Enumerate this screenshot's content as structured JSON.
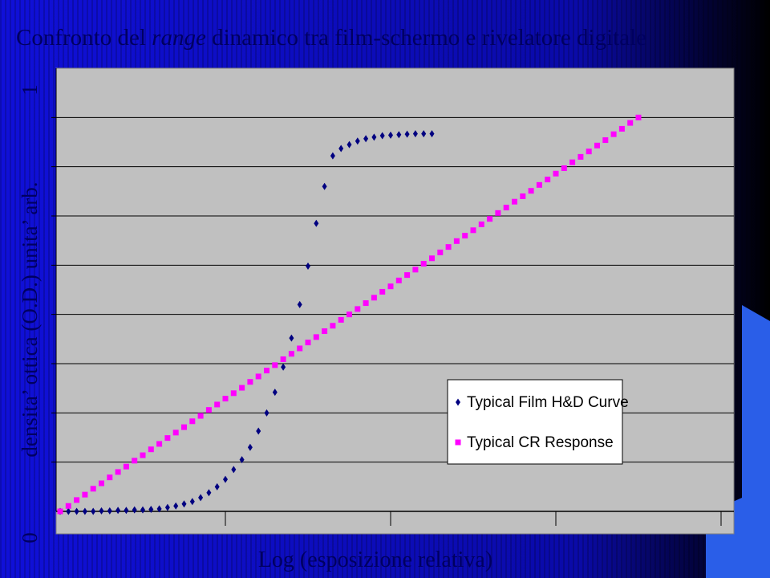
{
  "chart_data": {
    "type": "scatter",
    "title": {
      "before": "Confronto del ",
      "italic": "range",
      "after": " dinamico tra film-schermo e rivelatore digitale"
    },
    "y_label": "densita’ ottica (O.D.) unita’ arb.",
    "y_label_min": "0",
    "y_label_max": "1",
    "x_label": "Log (esposizione relativa)",
    "xlim": [
      0,
      4.1
    ],
    "xticks": [
      1,
      2,
      3,
      4
    ],
    "ylim": [
      0,
      9
    ],
    "yticks": [
      1,
      2,
      3,
      4,
      5,
      6,
      7,
      8
    ],
    "grid": true,
    "legend": "lower right",
    "series": [
      {
        "name": "Typical Film H&D Curve",
        "color": "#000080",
        "marker": "diamond",
        "x": [
          0,
          0.05,
          0.1,
          0.15,
          0.2,
          0.25,
          0.3,
          0.35,
          0.4,
          0.45,
          0.5,
          0.55,
          0.6,
          0.65,
          0.7,
          0.75,
          0.8,
          0.85,
          0.9,
          0.95,
          1.0,
          1.05,
          1.1,
          1.15,
          1.2,
          1.25,
          1.3,
          1.35,
          1.4,
          1.45,
          1.5,
          1.55,
          1.6,
          1.65,
          1.7,
          1.75,
          1.8,
          1.85,
          1.9,
          1.95,
          2.0,
          2.05,
          2.1,
          2.15,
          2.2,
          2.25
        ],
        "values": [
          0,
          0,
          0,
          0,
          0,
          0.01,
          0.01,
          0.02,
          0.02,
          0.03,
          0.03,
          0.04,
          0.05,
          0.08,
          0.11,
          0.15,
          0.2,
          0.28,
          0.38,
          0.5,
          0.65,
          0.85,
          1.05,
          1.3,
          1.63,
          2.0,
          2.42,
          2.93,
          3.52,
          4.2,
          4.98,
          5.85,
          6.6,
          7.22,
          7.37,
          7.45,
          7.52,
          7.57,
          7.6,
          7.63,
          7.64,
          7.65,
          7.66,
          7.67,
          7.67,
          7.67
        ]
      },
      {
        "name": "Typical CR Response",
        "color": "#ff00ff",
        "marker": "square",
        "x": [
          0,
          0.05,
          0.1,
          0.15,
          0.2,
          0.25,
          0.3,
          0.35,
          0.4,
          0.45,
          0.5,
          0.55,
          0.6,
          0.65,
          0.7,
          0.75,
          0.8,
          0.85,
          0.9,
          0.95,
          1.0,
          1.05,
          1.1,
          1.15,
          1.2,
          1.25,
          1.3,
          1.35,
          1.4,
          1.45,
          1.5,
          1.55,
          1.6,
          1.65,
          1.7,
          1.75,
          1.8,
          1.85,
          1.9,
          1.95,
          2.0,
          2.05,
          2.1,
          2.15,
          2.2,
          2.25,
          2.3,
          2.35,
          2.4,
          2.45,
          2.5,
          2.55,
          2.6,
          2.65,
          2.7,
          2.75,
          2.8,
          2.85,
          2.9,
          2.95,
          3.0,
          3.05,
          3.1,
          3.15,
          3.2,
          3.25,
          3.3,
          3.35,
          3.4,
          3.45,
          3.5
        ],
        "values": [
          0,
          0.11,
          0.23,
          0.34,
          0.46,
          0.57,
          0.69,
          0.8,
          0.91,
          1.03,
          1.14,
          1.26,
          1.37,
          1.49,
          1.6,
          1.71,
          1.83,
          1.94,
          2.06,
          2.17,
          2.29,
          2.4,
          2.51,
          2.63,
          2.74,
          2.86,
          2.97,
          3.09,
          3.2,
          3.31,
          3.43,
          3.54,
          3.66,
          3.77,
          3.89,
          4.0,
          4.11,
          4.23,
          4.34,
          4.46,
          4.57,
          4.69,
          4.8,
          4.91,
          5.03,
          5.14,
          5.26,
          5.37,
          5.49,
          5.6,
          5.71,
          5.83,
          5.94,
          6.06,
          6.17,
          6.29,
          6.4,
          6.51,
          6.63,
          6.74,
          6.86,
          6.97,
          7.09,
          7.2,
          7.31,
          7.43,
          7.54,
          7.66,
          7.77,
          7.89,
          8.0
        ]
      }
    ]
  }
}
